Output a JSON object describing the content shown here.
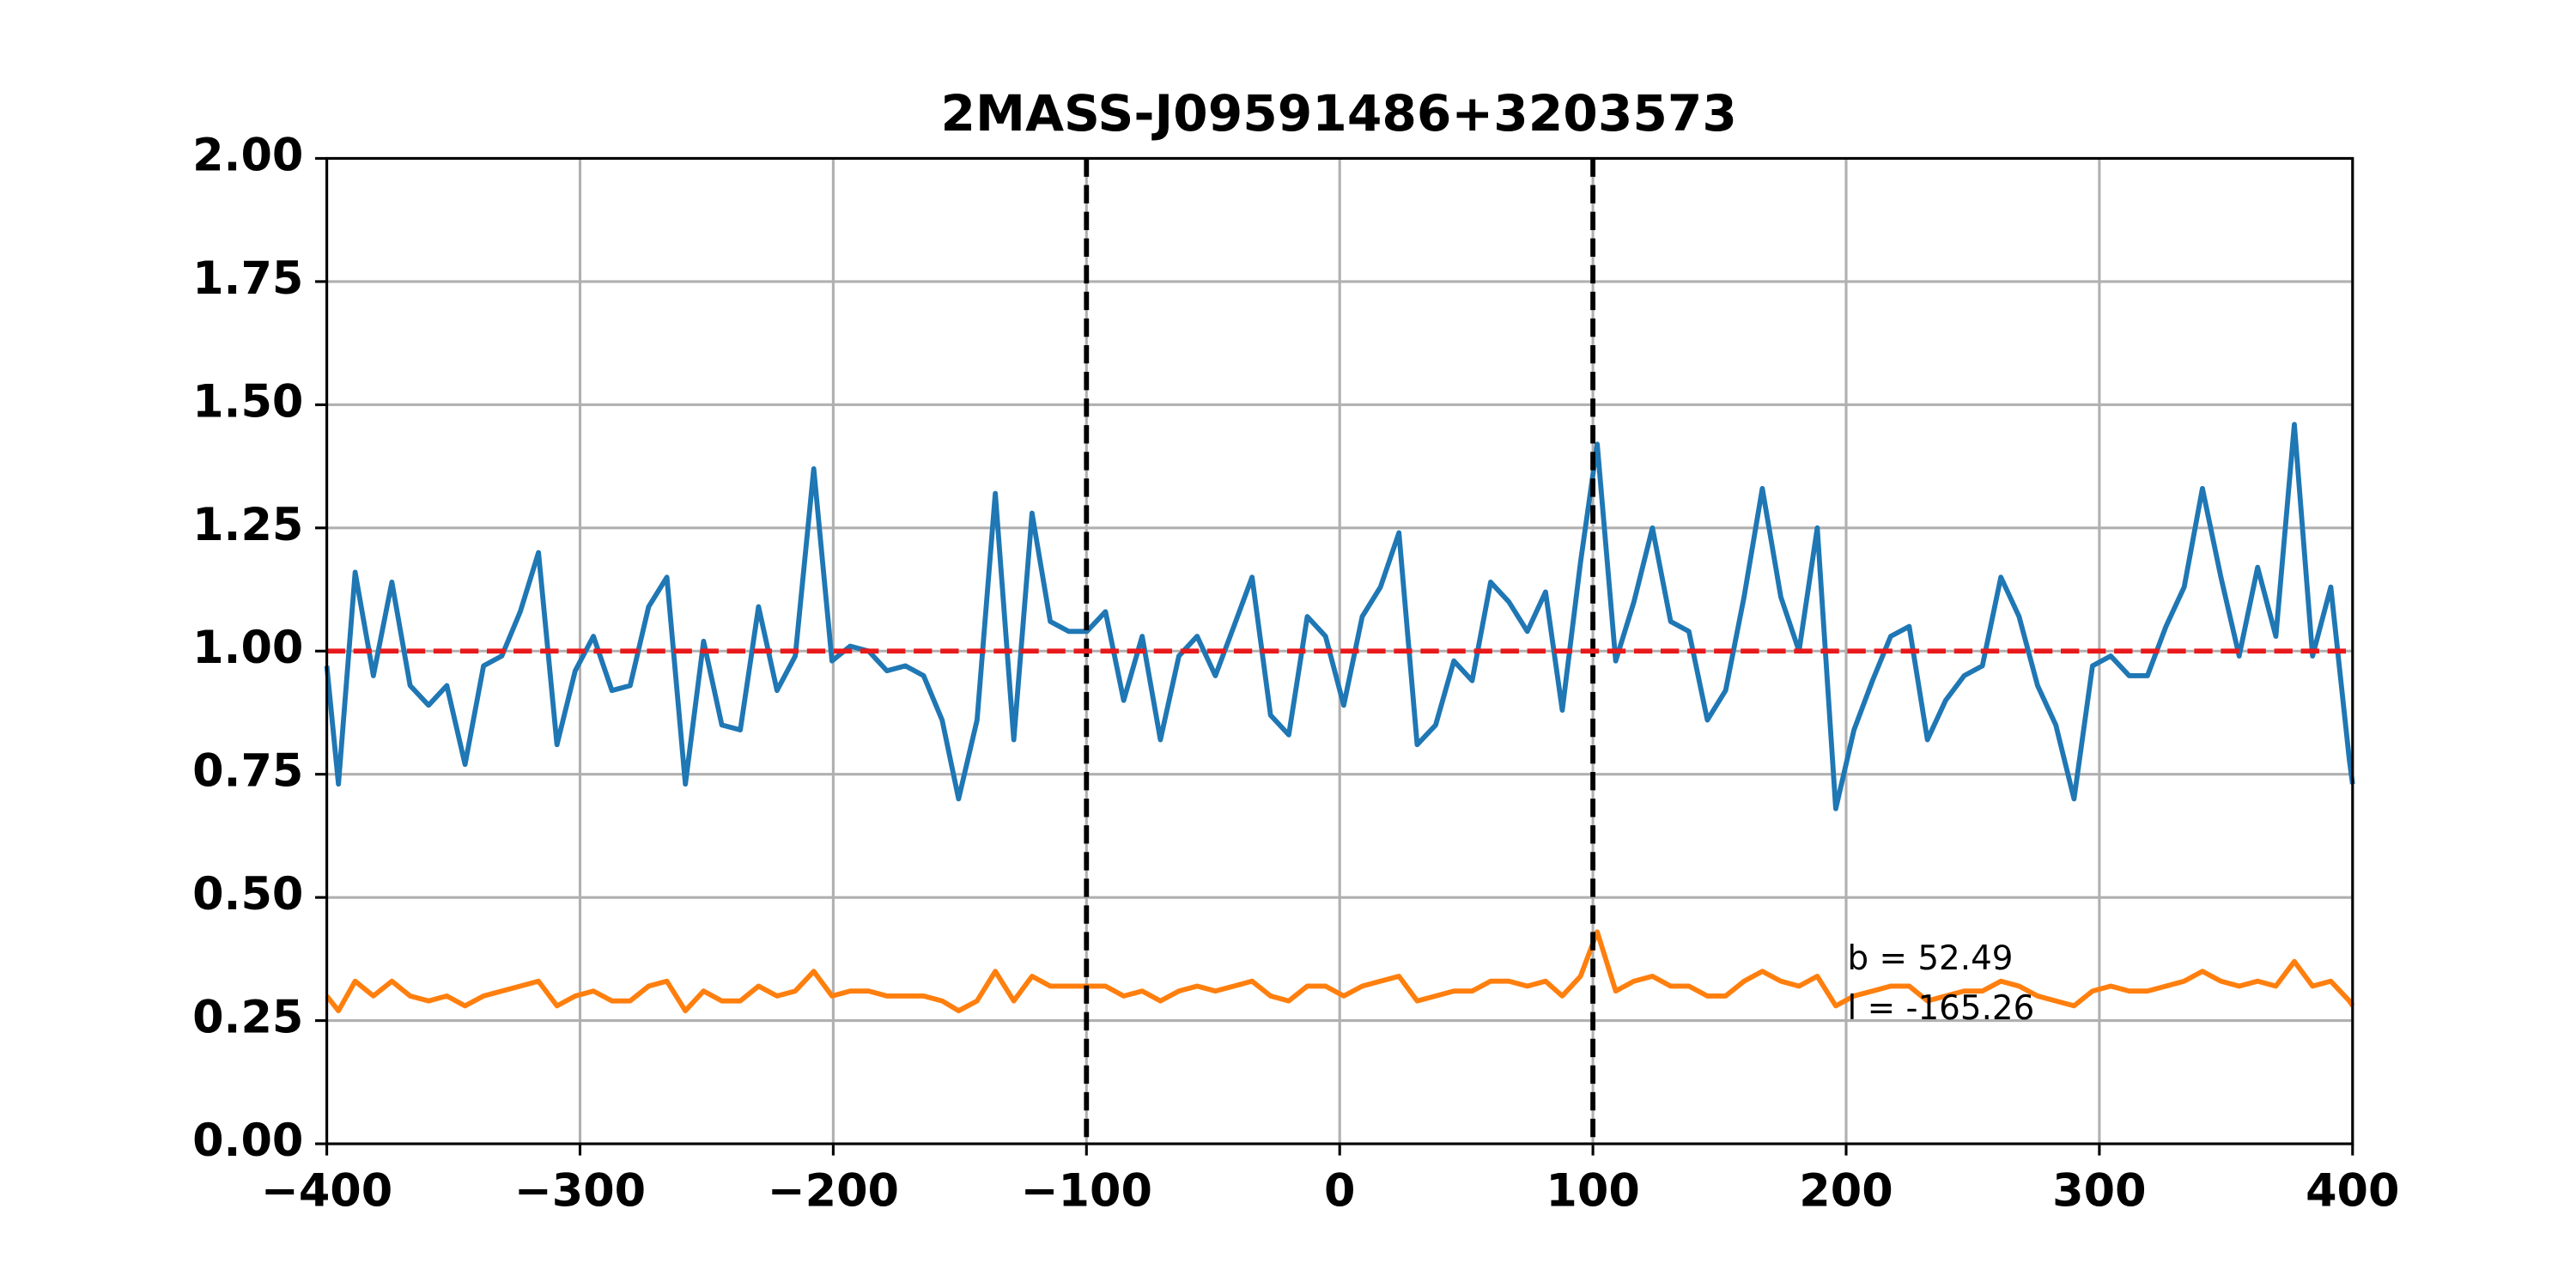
{
  "chart_data": {
    "type": "line",
    "title": "2MASS-J09591486+3203573",
    "x": [
      -400,
      -395.4,
      -388.8,
      -381.6,
      -374.3,
      -367.1,
      -359.8,
      -352.6,
      -345.4,
      -338.1,
      -330.9,
      -323.6,
      -316.4,
      -309.1,
      -301.9,
      -294.7,
      -287.4,
      -280.2,
      -272.9,
      -265.7,
      -258.4,
      -251.2,
      -244.0,
      -236.7,
      -229.5,
      -222.2,
      -215.0,
      -207.7,
      -200.5,
      -193.3,
      -186.0,
      -178.8,
      -171.5,
      -164.3,
      -157.0,
      -150.5,
      -143.2,
      -136.0,
      -128.7,
      -121.5,
      -114.3,
      -107.0,
      -99.8,
      -92.5,
      -85.3,
      -78.0,
      -70.8,
      -63.5,
      -56.3,
      -49.1,
      -41.8,
      -34.6,
      -27.3,
      -20.1,
      -12.8,
      -5.6,
      1.6,
      8.9,
      16.1,
      23.4,
      30.6,
      37.9,
      45.1,
      52.3,
      59.6,
      66.8,
      74.1,
      81.3,
      87.9,
      95.1,
      101.7,
      109.0,
      116.2,
      123.5,
      130.7,
      137.9,
      145.2,
      152.4,
      159.7,
      166.9,
      174.2,
      181.4,
      188.6,
      195.9,
      203.1,
      210.4,
      217.6,
      224.9,
      232.1,
      239.3,
      246.6,
      253.8,
      261.1,
      268.3,
      275.6,
      282.8,
      290.0,
      297.3,
      304.5,
      311.8,
      319.0,
      326.3,
      333.5,
      340.7,
      348.0,
      355.2,
      362.5,
      369.7,
      377.0,
      384.2,
      391.4,
      398.7,
      400
    ],
    "series": [
      {
        "color": "#1f77b4",
        "values": [
          0.97,
          0.73,
          1.16,
          0.95,
          1.14,
          0.93,
          0.89,
          0.93,
          0.77,
          0.97,
          0.99,
          1.08,
          1.2,
          0.81,
          0.96,
          1.03,
          0.92,
          0.93,
          1.09,
          1.15,
          0.73,
          1.02,
          0.85,
          0.84,
          1.09,
          0.92,
          0.99,
          1.37,
          0.98,
          1.01,
          1.0,
          0.96,
          0.97,
          0.95,
          0.86,
          0.7,
          0.86,
          1.32,
          0.82,
          1.28,
          1.06,
          1.04,
          1.04,
          1.08,
          0.9,
          1.03,
          0.82,
          0.99,
          1.03,
          0.95,
          1.05,
          1.15,
          0.87,
          0.83,
          1.07,
          1.03,
          0.89,
          1.07,
          1.13,
          1.24,
          0.81,
          0.85,
          0.98,
          0.94,
          1.14,
          1.1,
          1.04,
          1.12,
          0.88,
          1.18,
          1.42,
          0.98,
          1.1,
          1.25,
          1.06,
          1.04,
          0.86,
          0.92,
          1.11,
          1.33,
          1.11,
          1.0,
          1.25,
          0.68,
          0.84,
          0.94,
          1.03,
          1.05,
          0.82,
          0.9,
          0.95,
          0.97,
          1.15,
          1.07,
          0.93,
          0.85,
          0.7,
          0.97,
          0.99,
          0.95,
          0.95,
          1.05,
          1.13,
          1.33,
          1.15,
          0.99,
          1.17,
          1.03,
          1.46,
          0.99,
          1.13,
          0.78,
          0.73
        ]
      },
      {
        "color": "#ff7f0e",
        "values": [
          0.3,
          0.27,
          0.33,
          0.3,
          0.33,
          0.3,
          0.29,
          0.3,
          0.28,
          0.3,
          0.31,
          0.32,
          0.33,
          0.28,
          0.3,
          0.31,
          0.29,
          0.29,
          0.32,
          0.33,
          0.27,
          0.31,
          0.29,
          0.29,
          0.32,
          0.3,
          0.31,
          0.35,
          0.3,
          0.31,
          0.31,
          0.3,
          0.3,
          0.3,
          0.29,
          0.27,
          0.29,
          0.35,
          0.29,
          0.34,
          0.32,
          0.32,
          0.32,
          0.32,
          0.3,
          0.31,
          0.29,
          0.31,
          0.32,
          0.31,
          0.32,
          0.33,
          0.3,
          0.29,
          0.32,
          0.32,
          0.3,
          0.32,
          0.33,
          0.34,
          0.29,
          0.3,
          0.31,
          0.31,
          0.33,
          0.33,
          0.32,
          0.33,
          0.3,
          0.34,
          0.43,
          0.31,
          0.33,
          0.34,
          0.32,
          0.32,
          0.3,
          0.3,
          0.33,
          0.35,
          0.33,
          0.32,
          0.34,
          0.28,
          0.3,
          0.31,
          0.32,
          0.32,
          0.29,
          0.3,
          0.31,
          0.31,
          0.33,
          0.32,
          0.3,
          0.29,
          0.28,
          0.31,
          0.32,
          0.31,
          0.31,
          0.32,
          0.33,
          0.35,
          0.33,
          0.32,
          0.33,
          0.32,
          0.37,
          0.32,
          0.33,
          0.29,
          0.28
        ]
      }
    ],
    "vlines": [
      -100,
      100
    ],
    "vline_color": "#000000",
    "hline": 1,
    "hline_color": "#e8191b",
    "annotations": [
      "b = 52.49",
      "l = -165.26"
    ],
    "xlim": [
      -400,
      400
    ],
    "xticks": [
      {
        "value": -400,
        "label": "−400"
      },
      {
        "value": -300,
        "label": "−300"
      },
      {
        "value": -200,
        "label": "−200"
      },
      {
        "value": -100,
        "label": "−100"
      },
      0,
      100,
      200,
      300,
      400
    ],
    "ylim": [
      0,
      2
    ],
    "yticks": [
      {
        "value": 0,
        "label": "0.00"
      },
      {
        "value": 0.25,
        "label": "0.25"
      },
      {
        "value": 0.5,
        "label": "0.50"
      },
      {
        "value": 0.75,
        "label": "0.75"
      },
      {
        "value": 1,
        "label": "1.00"
      },
      {
        "value": 1.25,
        "label": "1.25"
      },
      {
        "value": 1.5,
        "label": "1.50"
      },
      {
        "value": 1.75,
        "label": "1.75"
      },
      {
        "value": 2,
        "label": "2.00"
      }
    ],
    "grid": true
  }
}
